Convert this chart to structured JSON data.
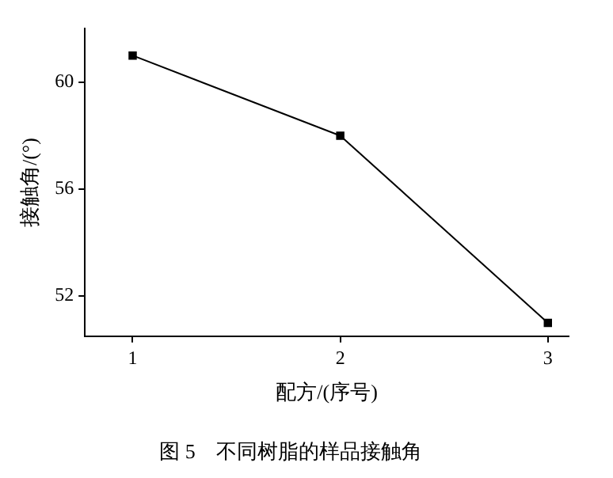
{
  "chart_data": {
    "type": "line",
    "title": "图 5　不同树脂的样品接触角",
    "xlabel": "配方/(序号)",
    "ylabel": "接触角/(°)",
    "x": [
      1,
      2,
      3
    ],
    "xlim": [
      0.77,
      3.1
    ],
    "xticks": [
      1,
      2,
      3
    ],
    "ylim": [
      50.5,
      62
    ],
    "yticks": [
      52,
      56,
      60
    ],
    "series": [
      {
        "color": "#000000",
        "values": [
          61,
          58,
          51
        ]
      }
    ],
    "marker": "square",
    "line_style": "solid",
    "grid": false,
    "legend": false
  }
}
